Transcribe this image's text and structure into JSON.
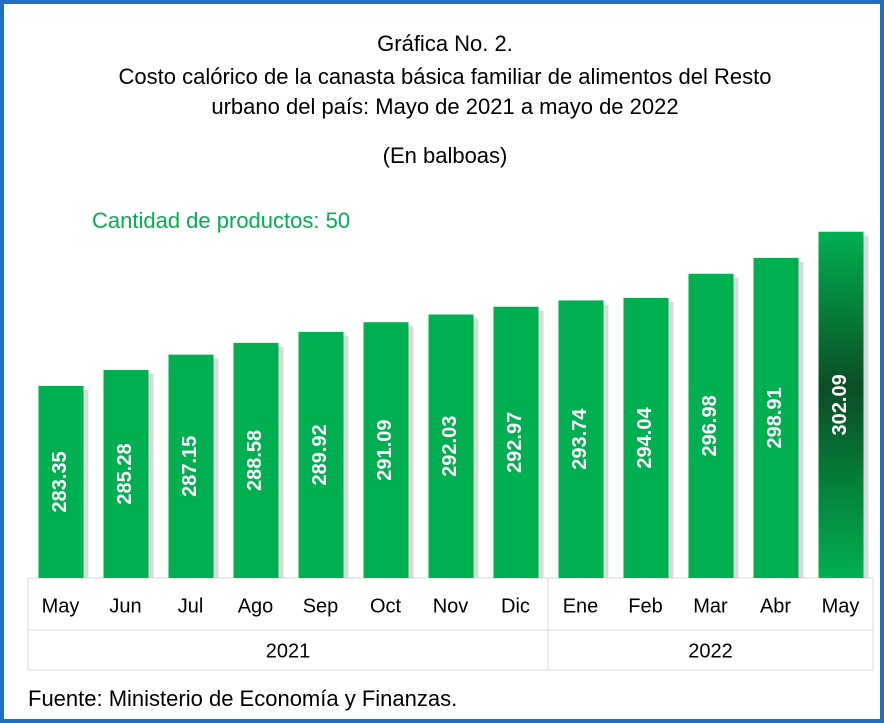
{
  "chart_data": {
    "type": "bar",
    "title": "Gráfica No.  2.",
    "subtitle": [
      "Costo calórico de la canasta básica familiar de alimentos del Resto",
      "urbano del país: Mayo de 2021 a mayo de 2022"
    ],
    "unit_note": "(En balboas)",
    "annotation": "Cantidad de productos: 50",
    "source": "Fuente: Ministerio de Economía y Finanzas.",
    "color": "#00b050",
    "ylim": [
      260,
      304
    ],
    "groups": [
      {
        "label": "2021",
        "categories": [
          "May",
          "Jun",
          "Jul",
          "Ago",
          "Sep",
          "Oct",
          "Nov",
          "Dic"
        ],
        "values": [
          283.35,
          285.28,
          287.15,
          288.58,
          289.92,
          291.09,
          292.03,
          292.97
        ]
      },
      {
        "label": "2022",
        "categories": [
          "Ene",
          "Feb",
          "Mar",
          "Abr",
          "May"
        ],
        "values": [
          293.74,
          294.04,
          296.98,
          298.91,
          302.09
        ]
      }
    ]
  }
}
